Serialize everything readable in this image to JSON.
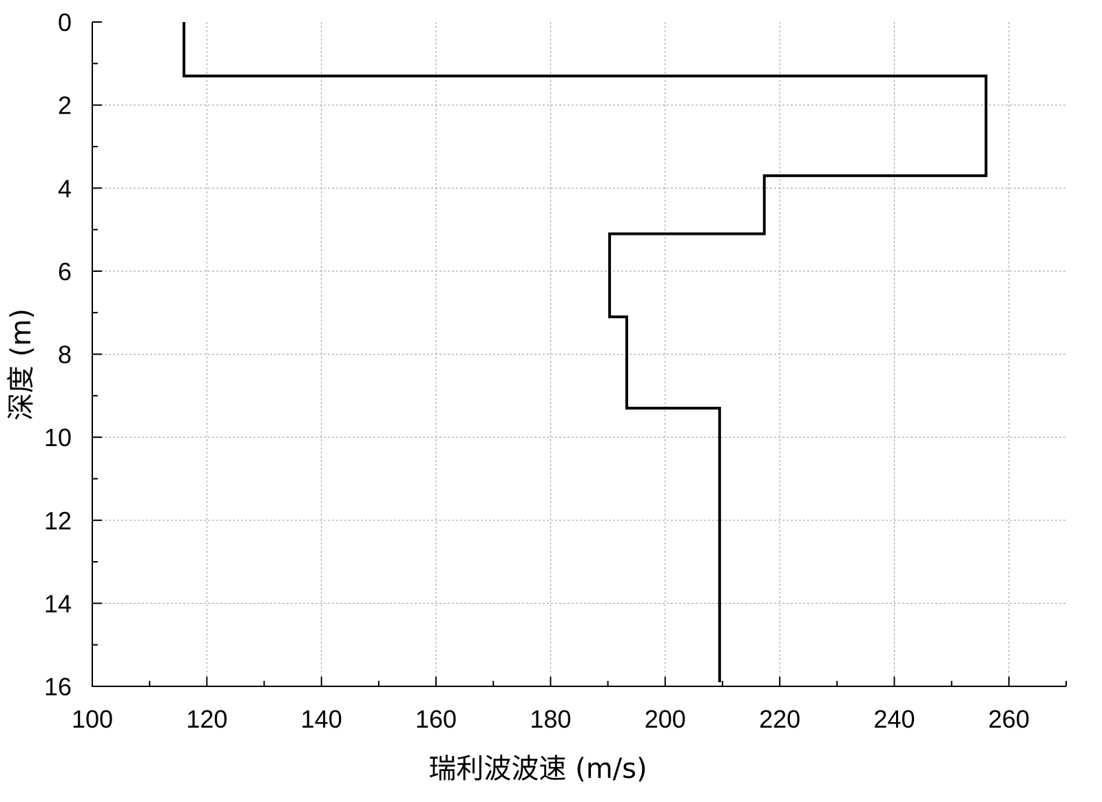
{
  "chart_data": {
    "type": "line",
    "title": "",
    "xlabel": "瑞利波波速 (m/s)",
    "ylabel": "深度 (m)",
    "xlim": [
      100,
      270
    ],
    "ylim": [
      0,
      16
    ],
    "y_inverted": true,
    "x_ticks": [
      100,
      120,
      140,
      160,
      180,
      200,
      220,
      240,
      260
    ],
    "y_ticks": [
      0,
      2,
      4,
      6,
      8,
      10,
      12,
      14,
      16
    ],
    "grid": true,
    "legend": "none",
    "series": [
      {
        "color": "#000000",
        "points": [
          {
            "x": 116,
            "y": 0
          },
          {
            "x": 116,
            "y": 1.3
          },
          {
            "x": 256,
            "y": 1.3
          },
          {
            "x": 256,
            "y": 3.7
          },
          {
            "x": 217.3,
            "y": 3.7
          },
          {
            "x": 217.3,
            "y": 5.1
          },
          {
            "x": 190.3,
            "y": 5.1
          },
          {
            "x": 190.3,
            "y": 7.1
          },
          {
            "x": 193.3,
            "y": 7.1
          },
          {
            "x": 193.3,
            "y": 9.3
          },
          {
            "x": 209.5,
            "y": 9.3
          },
          {
            "x": 209.5,
            "y": 15.9
          }
        ]
      }
    ]
  }
}
